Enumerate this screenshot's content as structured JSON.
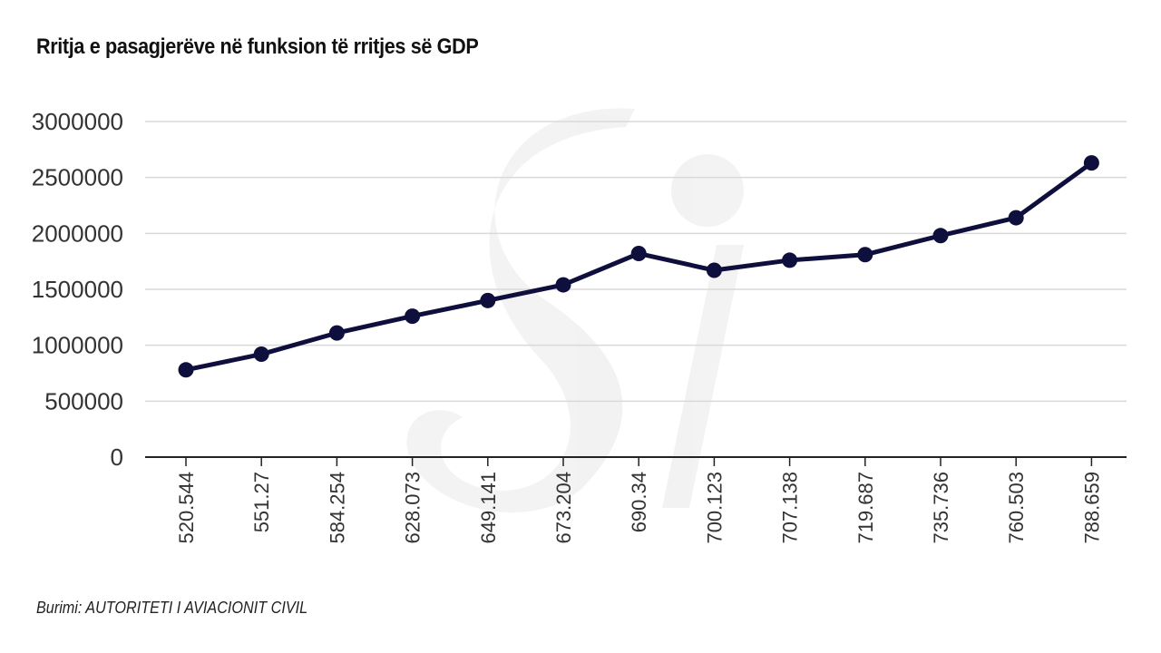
{
  "title": "Rritja e pasagjerëve në funksion të rritjes së GDP",
  "source": "Burimi: AUTORITETI I AVIACIONIT CIVIL",
  "chart_data": {
    "type": "line",
    "title": "Rritja e pasagjerëve në funksion të rritjes së GDP",
    "xlabel": "",
    "ylabel": "",
    "categories": [
      "520.544",
      "551.27",
      "584.254",
      "628.073",
      "649.141",
      "673.204",
      "690.34",
      "700.123",
      "707.138",
      "719.687",
      "735.736",
      "760.503",
      "788.659"
    ],
    "values": [
      780000,
      920000,
      1110000,
      1260000,
      1400000,
      1540000,
      1820000,
      1670000,
      1760000,
      1810000,
      1980000,
      2140000,
      2630000
    ],
    "ylim": [
      0,
      3000000
    ],
    "yticks": [
      "0",
      "500000",
      "1000000",
      "1500000",
      "2000000",
      "2500000",
      "3000000"
    ],
    "grid": true,
    "legend": "none",
    "line_color": "#0f0f3d",
    "grid_color": "#d9d9d9"
  }
}
